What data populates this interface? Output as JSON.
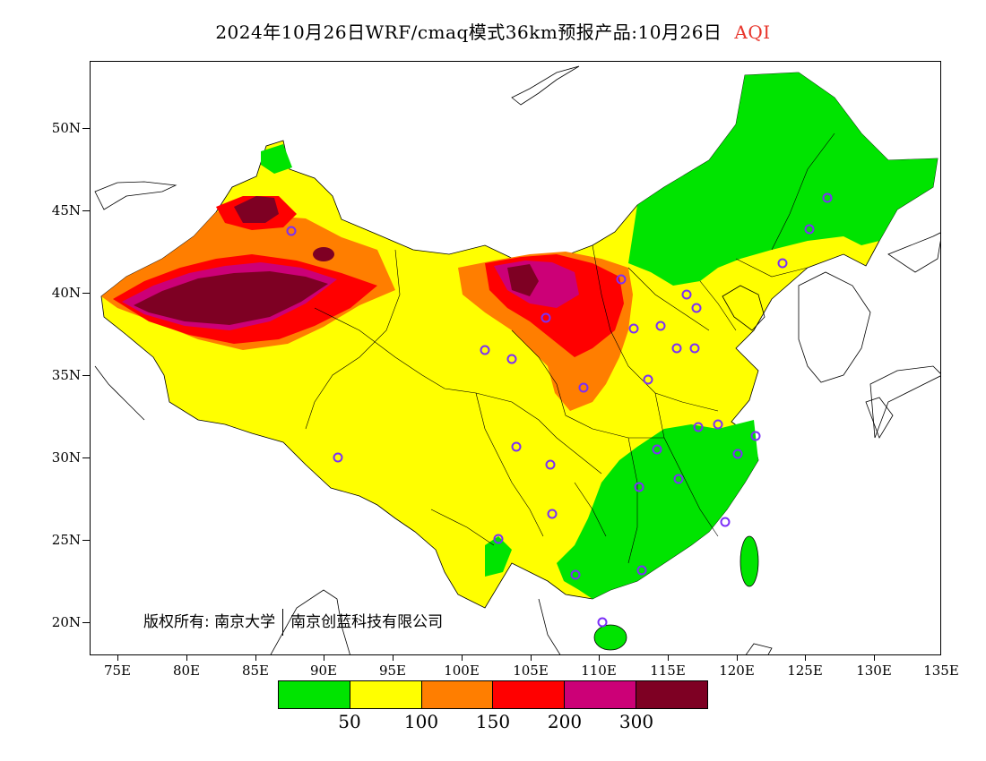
{
  "title": {
    "main": "2024年10月26日WRF/cmaq模式36km预报产品:10月26日",
    "variable": "AQI",
    "variable_color": "#e8342a"
  },
  "axes": {
    "lat_labels": [
      "50N",
      "45N",
      "40N",
      "35N",
      "30N",
      "25N",
      "20N"
    ],
    "lon_labels": [
      "75E",
      "80E",
      "85E",
      "90E",
      "95E",
      "100E",
      "105E",
      "110E",
      "115E",
      "120E",
      "125E",
      "130E",
      "135E"
    ]
  },
  "legend": {
    "colors": [
      "#00e400",
      "#ffff00",
      "#ff7e00",
      "#ff0000",
      "#cc0077",
      "#7e0023"
    ],
    "labels": [
      "50",
      "100",
      "150",
      "200",
      "300"
    ]
  },
  "copyright": {
    "prefix": "版权所有:",
    "org1": "南京大学",
    "org2": "南京创蓝科技有限公司"
  },
  "regions": {
    "good_northeast": "good",
    "good_south": "good",
    "moderate_main": "moderate",
    "sensitive_north": "unhealthy-for-sensitive",
    "unhealthy_north": "unhealthy",
    "very_unhealthy_north": "very-unhealthy",
    "hazardous_tarim": "hazardous",
    "hazardous_junggar": "hazardous",
    "hazardous_inner_mongolia": "hazardous"
  },
  "stations_shown": 32
}
